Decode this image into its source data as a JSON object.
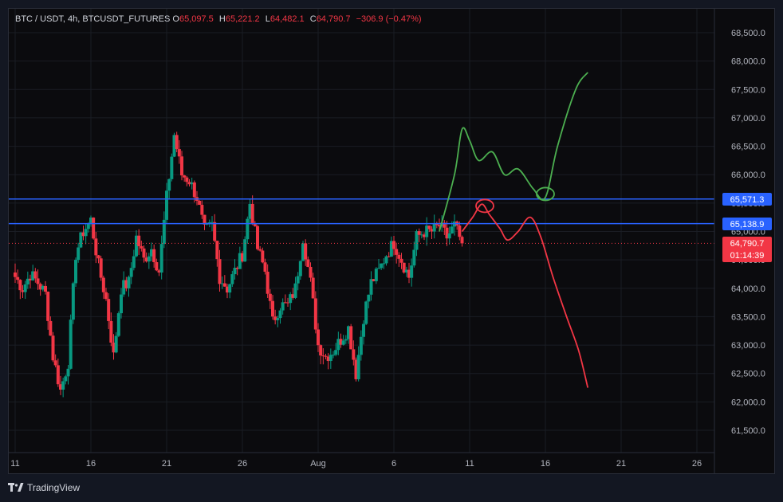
{
  "legend": {
    "symbol": "BTC / USDT, 4h, BTCUSDT_FUTURES",
    "open_label": "O",
    "open_value": "65,097.5",
    "high_label": "H",
    "high_value": "65,221.2",
    "low_label": "L",
    "low_value": "64,482.1",
    "close_label": "C",
    "close_value": "64,790.7",
    "change": "−306.9 (−0.47%)"
  },
  "price_tags": {
    "resistance": "65,571.3",
    "support": "65,138.9",
    "last_price": "64,790.7",
    "countdown": "01:14:39"
  },
  "footer": {
    "brand": "TradingView",
    "logo_icon": "tradingview-logo-icon"
  },
  "colors": {
    "background": "#0b0b0e",
    "up": "#089981",
    "down": "#f23645",
    "level_line": "#2962ff",
    "projection_up": "#4caf50",
    "projection_down": "#f23645"
  },
  "chart_data": {
    "type": "candlestick",
    "symbol": "BTC / USDT",
    "timeframe": "4h",
    "ylim": [
      61000,
      68800
    ],
    "y_ticks": [
      61500,
      62000,
      62500,
      63000,
      63500,
      64000,
      64500,
      65000,
      65500,
      66000,
      66500,
      67000,
      67500,
      68000,
      68500
    ],
    "y_tick_labels": [
      "61,500.0",
      "62,000.0",
      "62,500.0",
      "63,000.0",
      "63,500.0",
      "64,000.0",
      "64,500.0",
      "65,000.0",
      "65,500.0",
      "66,000.0",
      "66,500.0",
      "67,000.0",
      "67,500.0",
      "68,000.0",
      "68,500.0"
    ],
    "x_start_day": 11,
    "x_ticks": [
      {
        "day": 11,
        "label": "11"
      },
      {
        "day": 16,
        "label": "16"
      },
      {
        "day": 21,
        "label": "21"
      },
      {
        "day": 26,
        "label": "26"
      },
      {
        "day": 31,
        "label": "Aug"
      },
      {
        "day": 36,
        "label": "6"
      },
      {
        "day": 41,
        "label": "11"
      },
      {
        "day": 46,
        "label": "16"
      },
      {
        "day": 51,
        "label": "21"
      },
      {
        "day": 56,
        "label": "26"
      }
    ],
    "grid": true,
    "horizontal_levels": [
      {
        "name": "resistance",
        "price": 65571.3
      },
      {
        "name": "support",
        "price": 65138.9
      }
    ],
    "last_price": 64790.7,
    "closes": [
      {
        "day": 11.0,
        "close": 64200
      },
      {
        "day": 11.5,
        "close": 64000
      },
      {
        "day": 12.0,
        "close": 64250
      },
      {
        "day": 12.5,
        "close": 64100
      },
      {
        "day": 13.0,
        "close": 63900
      },
      {
        "day": 13.5,
        "close": 62800
      },
      {
        "day": 14.0,
        "close": 62200
      },
      {
        "day": 14.5,
        "close": 62700
      },
      {
        "day": 15.0,
        "close": 64600
      },
      {
        "day": 15.5,
        "close": 65000
      },
      {
        "day": 16.0,
        "close": 65200
      },
      {
        "day": 16.5,
        "close": 64400
      },
      {
        "day": 17.0,
        "close": 63800
      },
      {
        "day": 17.5,
        "close": 62800
      },
      {
        "day": 18.0,
        "close": 64000
      },
      {
        "day": 18.5,
        "close": 64100
      },
      {
        "day": 19.0,
        "close": 64900
      },
      {
        "day": 19.5,
        "close": 64500
      },
      {
        "day": 20.0,
        "close": 64700
      },
      {
        "day": 20.5,
        "close": 64300
      },
      {
        "day": 21.0,
        "close": 65600
      },
      {
        "day": 21.5,
        "close": 66700
      },
      {
        "day": 22.0,
        "close": 66000
      },
      {
        "day": 22.5,
        "close": 65900
      },
      {
        "day": 23.0,
        "close": 65600
      },
      {
        "day": 23.5,
        "close": 65000
      },
      {
        "day": 24.0,
        "close": 65100
      },
      {
        "day": 24.5,
        "close": 64200
      },
      {
        "day": 25.0,
        "close": 64000
      },
      {
        "day": 25.5,
        "close": 64300
      },
      {
        "day": 26.0,
        "close": 64600
      },
      {
        "day": 26.5,
        "close": 65500
      },
      {
        "day": 27.0,
        "close": 64700
      },
      {
        "day": 27.5,
        "close": 64300
      },
      {
        "day": 28.0,
        "close": 63400
      },
      {
        "day": 28.5,
        "close": 63700
      },
      {
        "day": 29.0,
        "close": 63700
      },
      {
        "day": 29.5,
        "close": 64000
      },
      {
        "day": 30.0,
        "close": 64900
      },
      {
        "day": 30.5,
        "close": 64100
      },
      {
        "day": 31.0,
        "close": 63000
      },
      {
        "day": 31.5,
        "close": 62800
      },
      {
        "day": 32.0,
        "close": 62900
      },
      {
        "day": 32.5,
        "close": 63100
      },
      {
        "day": 33.0,
        "close": 63300
      },
      {
        "day": 33.5,
        "close": 62500
      },
      {
        "day": 34.0,
        "close": 63500
      },
      {
        "day": 34.5,
        "close": 64100
      },
      {
        "day": 35.0,
        "close": 64300
      },
      {
        "day": 35.5,
        "close": 64600
      },
      {
        "day": 36.0,
        "close": 64800
      },
      {
        "day": 36.5,
        "close": 64500
      },
      {
        "day": 37.0,
        "close": 64200
      },
      {
        "day": 37.5,
        "close": 64900
      },
      {
        "day": 38.0,
        "close": 65000
      },
      {
        "day": 38.5,
        "close": 65000
      },
      {
        "day": 39.0,
        "close": 65100
      },
      {
        "day": 39.5,
        "close": 64900
      },
      {
        "day": 40.0,
        "close": 65100
      },
      {
        "day": 40.5,
        "close": 64790.7
      }
    ],
    "projections": [
      {
        "name": "bullish-scenario",
        "points": [
          {
            "day": 39.0,
            "price": 65000
          },
          {
            "day": 40.0,
            "price": 66000
          },
          {
            "day": 40.5,
            "price": 66800
          },
          {
            "day": 41.0,
            "price": 66600
          },
          {
            "day": 41.6,
            "price": 66250
          },
          {
            "day": 42.5,
            "price": 66400
          },
          {
            "day": 43.3,
            "price": 66000
          },
          {
            "day": 44.2,
            "price": 66100
          },
          {
            "day": 45.2,
            "price": 65750
          },
          {
            "day": 46.0,
            "price": 65600
          },
          {
            "day": 46.8,
            "price": 66500
          },
          {
            "day": 48.0,
            "price": 67500
          },
          {
            "day": 48.8,
            "price": 67800
          }
        ]
      },
      {
        "name": "bearish-scenario",
        "points": [
          {
            "day": 40.5,
            "price": 65000
          },
          {
            "day": 41.2,
            "price": 65250
          },
          {
            "day": 41.8,
            "price": 65480
          },
          {
            "day": 42.3,
            "price": 65300
          },
          {
            "day": 43.0,
            "price": 65050
          },
          {
            "day": 43.5,
            "price": 64850
          },
          {
            "day": 44.2,
            "price": 65000
          },
          {
            "day": 45.0,
            "price": 65250
          },
          {
            "day": 45.7,
            "price": 64900
          },
          {
            "day": 46.5,
            "price": 64200
          },
          {
            "day": 47.4,
            "price": 63500
          },
          {
            "day": 48.2,
            "price": 62900
          },
          {
            "day": 48.8,
            "price": 62250
          }
        ]
      }
    ],
    "circles": [
      {
        "name": "bullish-turn-circle",
        "day": 46.0,
        "price": 65660
      },
      {
        "name": "bearish-top-circle",
        "day": 42.0,
        "price": 65450
      }
    ]
  }
}
